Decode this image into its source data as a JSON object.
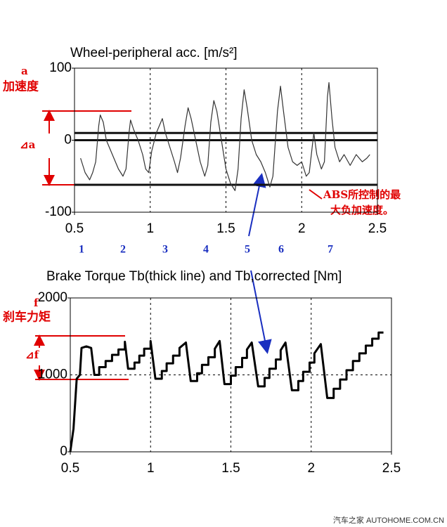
{
  "chart_data": [
    {
      "type": "line",
      "title": "Wheel-peripheral acc. [m/s²]",
      "xlim": [
        0.5,
        2.5
      ],
      "xticks": [
        0.5,
        1,
        1.5,
        2,
        2.5
      ],
      "ylim": [
        -100,
        100
      ],
      "yticks": [
        -100,
        0,
        100
      ],
      "grid": "x",
      "hlines": [
        10,
        0,
        -62
      ],
      "series": [
        {
          "color": "#333333",
          "x": [
            0.54,
            0.57,
            0.6,
            0.62,
            0.64,
            0.66,
            0.67,
            0.69,
            0.71,
            0.73,
            0.76,
            0.79,
            0.82,
            0.84,
            0.86,
            0.87,
            0.89,
            0.92,
            0.95,
            0.97,
            0.99,
            1.01,
            1.04,
            1.06,
            1.08,
            1.1,
            1.13,
            1.16,
            1.18,
            1.2,
            1.23,
            1.25,
            1.27,
            1.3,
            1.33,
            1.36,
            1.38,
            1.4,
            1.42,
            1.44,
            1.47,
            1.5,
            1.53,
            1.56,
            1.58,
            1.6,
            1.62,
            1.64,
            1.67,
            1.7,
            1.73,
            1.76,
            1.79,
            1.81,
            1.84,
            1.86,
            1.88,
            1.91,
            1.94,
            1.97,
            2.0,
            2.03,
            2.05,
            2.08,
            2.1,
            2.13,
            2.15,
            2.17,
            2.18,
            2.2,
            2.22,
            2.25,
            2.28,
            2.32,
            2.36,
            2.4,
            2.43,
            2.45
          ],
          "values": [
            -25,
            -45,
            -55,
            -45,
            -30,
            20,
            35,
            25,
            0,
            -10,
            -25,
            -40,
            -50,
            -40,
            10,
            28,
            15,
            0,
            -20,
            -40,
            -45,
            -15,
            10,
            20,
            30,
            10,
            -10,
            -30,
            -45,
            -25,
            20,
            45,
            30,
            0,
            -30,
            -50,
            -35,
            25,
            55,
            40,
            0,
            -40,
            -60,
            -70,
            -40,
            30,
            70,
            45,
            0,
            -20,
            -30,
            -45,
            -65,
            -50,
            40,
            75,
            40,
            -10,
            -30,
            -35,
            -30,
            -50,
            -45,
            10,
            -20,
            -40,
            -30,
            60,
            80,
            30,
            -10,
            -30,
            -20,
            -35,
            -20,
            -30,
            -25,
            -20
          ]
        }
      ]
    },
    {
      "type": "line",
      "title": "Brake Torque Tb(thick line) and Tb,corrected [Nm]",
      "xlim": [
        0.5,
        2.5
      ],
      "xticks": [
        0.5,
        1,
        1.5,
        2,
        2.5
      ],
      "ylim": [
        0,
        2000
      ],
      "yticks": [
        0,
        1000,
        2000
      ],
      "grid": "both",
      "series": [
        {
          "color": "#000000",
          "x": [
            0.5,
            0.52,
            0.54,
            0.56,
            0.57,
            0.6,
            0.63,
            0.65,
            0.68,
            0.68,
            0.72,
            0.72,
            0.76,
            0.76,
            0.8,
            0.8,
            0.84,
            0.84,
            0.86,
            0.9,
            0.9,
            0.93,
            0.93,
            0.96,
            0.96,
            1.0,
            1.0,
            1.03,
            1.07,
            1.07,
            1.1,
            1.1,
            1.14,
            1.14,
            1.18,
            1.18,
            1.22,
            1.25,
            1.29,
            1.29,
            1.32,
            1.32,
            1.36,
            1.36,
            1.4,
            1.4,
            1.43,
            1.46,
            1.5,
            1.5,
            1.53,
            1.53,
            1.57,
            1.57,
            1.6,
            1.6,
            1.63,
            1.67,
            1.71,
            1.71,
            1.74,
            1.74,
            1.78,
            1.78,
            1.81,
            1.81,
            1.84,
            1.88,
            1.92,
            1.92,
            1.95,
            1.95,
            1.99,
            1.99,
            2.02,
            2.02,
            2.06,
            2.1,
            2.14,
            2.14,
            2.18,
            2.18,
            2.22,
            2.22,
            2.26,
            2.26,
            2.3,
            2.3,
            2.34,
            2.34,
            2.38,
            2.38,
            2.42,
            2.42,
            2.45
          ],
          "values": [
            0,
            300,
            950,
            1000,
            1350,
            1370,
            1350,
            1000,
            1000,
            1100,
            1100,
            1180,
            1180,
            1260,
            1260,
            1330,
            1330,
            1430,
            1080,
            1080,
            1160,
            1160,
            1250,
            1250,
            1340,
            1340,
            1440,
            950,
            950,
            1050,
            1050,
            1150,
            1150,
            1250,
            1250,
            1350,
            1420,
            920,
            920,
            1020,
            1020,
            1130,
            1130,
            1230,
            1230,
            1340,
            1440,
            880,
            880,
            990,
            990,
            1100,
            1100,
            1220,
            1220,
            1330,
            1420,
            850,
            850,
            960,
            960,
            1080,
            1080,
            1200,
            1200,
            1320,
            1420,
            800,
            800,
            920,
            920,
            1040,
            1040,
            1160,
            1160,
            1280,
            1400,
            700,
            700,
            820,
            820,
            940,
            940,
            1060,
            1060,
            1180,
            1180,
            1280,
            1280,
            1380,
            1380,
            1470,
            1470,
            1550,
            1550
          ]
        }
      ]
    }
  ],
  "annotations": {
    "acc_symbol": "a",
    "acc_label": "加速度",
    "delta_a": "⊿a",
    "torque_symbol": "f",
    "torque_label": "刹车力矩",
    "delta_f": "⊿f",
    "abs_note": [
      "ABS所控制的最",
      "大负加速度。"
    ],
    "cycle_labels": [
      "1",
      "2",
      "3",
      "4",
      "5",
      "6",
      "7"
    ]
  },
  "watermark": "汽车之家 AUTOHOME.COM.CN"
}
